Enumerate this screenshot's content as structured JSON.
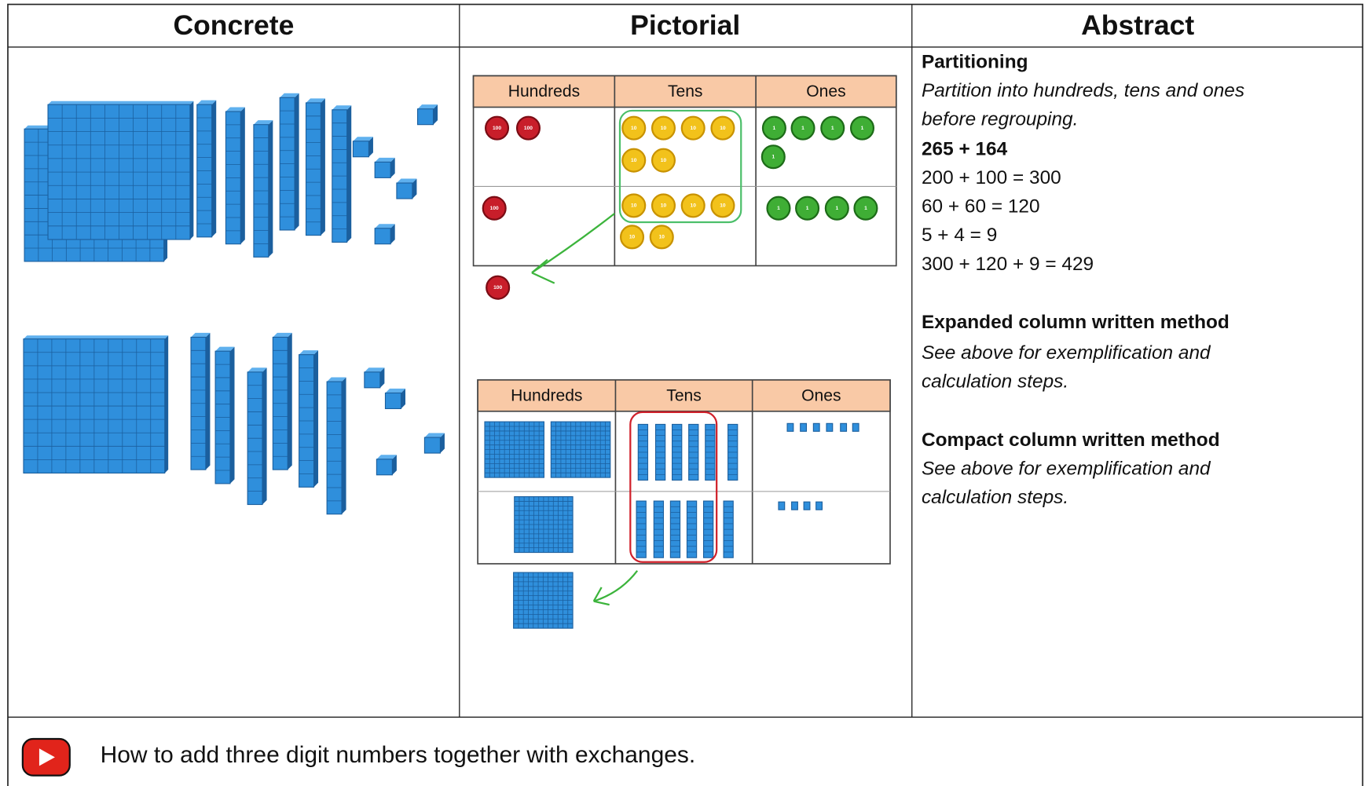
{
  "header": {
    "columns": [
      "Concrete",
      "Pictorial",
      "Abstract"
    ]
  },
  "pictorial": {
    "tables": [
      {
        "columns": [
          "Hundreds",
          "Tens",
          "Ones"
        ]
      },
      {
        "columns": [
          "Hundreds",
          "Tens",
          "Ones"
        ]
      }
    ],
    "counter_labels": {
      "hundreds": "100",
      "tens": "10",
      "ones": "1"
    }
  },
  "abstract": {
    "lines": [
      {
        "text": "Partitioning",
        "style": "bold"
      },
      {
        "text": "Partition into hundreds, tens and ones",
        "style": "italic"
      },
      {
        "text": "before regrouping.",
        "style": "italic"
      },
      {
        "text": "265 + 164",
        "style": "bold"
      },
      {
        "text": "200 + 100 = 300",
        "style": "normal"
      },
      {
        "text": "60 + 60 = 120",
        "style": "normal"
      },
      {
        "text": "5 + 4 = 9",
        "style": "normal"
      },
      {
        "text": "300 + 120 + 9 = 429",
        "style": "normal"
      },
      {
        "text": "Expanded column written method",
        "style": "bold"
      },
      {
        "text": "See above for exemplification and",
        "style": "italic"
      },
      {
        "text": "calculation steps.",
        "style": "italic"
      },
      {
        "text": "Compact column written method",
        "style": "bold"
      },
      {
        "text": "See above for exemplification and",
        "style": "italic"
      },
      {
        "text": "calculation steps.",
        "style": "italic"
      }
    ]
  },
  "footer": {
    "video_link": "How to add three digit numbers together with exchanges."
  }
}
